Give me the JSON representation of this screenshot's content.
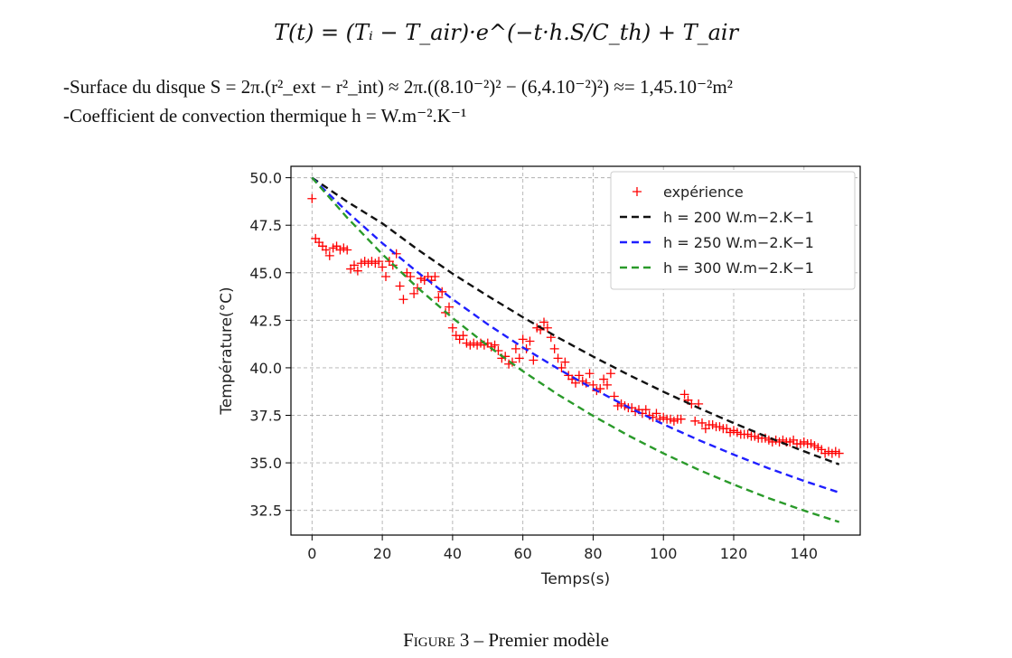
{
  "formula": "T(t) = (Tᵢ − T_air)·e^(−t·h.S/C_th) + T_air",
  "text_lines": [
    "-Surface du disque S = 2π.(r²_ext − r²_int) ≈ 2π.((8.10⁻²)² − (6,4.10⁻²)²) ≈= 1,45.10⁻²m²",
    "-Coefficient de convection thermique h = W.m⁻².K⁻¹"
  ],
  "caption": {
    "prefix": "Figure 3",
    "separator": " – ",
    "title": "Premier modèle"
  },
  "chart_data": {
    "type": "line",
    "title": "",
    "xlabel": "Temps(s)",
    "ylabel": "Température(°C)",
    "xlim": [
      -6,
      156
    ],
    "ylim": [
      31.2,
      50.6
    ],
    "xticks": [
      0,
      20,
      40,
      60,
      80,
      100,
      120,
      140
    ],
    "yticks": [
      32.5,
      35.0,
      37.5,
      40.0,
      42.5,
      45.0,
      47.5,
      50.0
    ],
    "grid": true,
    "legend_position": "top-right",
    "series": [
      {
        "name": "expérience",
        "kind": "scatter",
        "marker": "+",
        "color": "#ff0000",
        "x": [
          0,
          1,
          2,
          3,
          4,
          5,
          6,
          7,
          8,
          9,
          10,
          11,
          12,
          13,
          14,
          15,
          16,
          17,
          18,
          19,
          20,
          21,
          22,
          23,
          24,
          25,
          26,
          27,
          28,
          29,
          30,
          31,
          32,
          33,
          34,
          35,
          36,
          37,
          38,
          39,
          40,
          41,
          42,
          43,
          44,
          45,
          46,
          47,
          48,
          49,
          50,
          51,
          52,
          53,
          54,
          55,
          56,
          57,
          58,
          59,
          60,
          61,
          62,
          63,
          64,
          65,
          66,
          67,
          68,
          69,
          70,
          71,
          72,
          73,
          74,
          75,
          76,
          77,
          78,
          79,
          80,
          81,
          82,
          83,
          84,
          85,
          86,
          87,
          88,
          89,
          90,
          91,
          92,
          93,
          94,
          95,
          96,
          97,
          98,
          99,
          100,
          101,
          102,
          103,
          104,
          105,
          106,
          107,
          108,
          109,
          110,
          111,
          112,
          113,
          114,
          115,
          116,
          117,
          118,
          119,
          120,
          121,
          122,
          123,
          124,
          125,
          126,
          127,
          128,
          129,
          130,
          131,
          132,
          133,
          134,
          135,
          136,
          137,
          138,
          139,
          140,
          141,
          142,
          143,
          144,
          145,
          146,
          147,
          148,
          149,
          150
        ],
        "y": [
          48.9,
          46.8,
          46.6,
          46.4,
          46.2,
          45.9,
          46.3,
          46.4,
          46.2,
          46.3,
          46.2,
          45.2,
          45.4,
          45.1,
          45.5,
          45.6,
          45.5,
          45.6,
          45.5,
          45.6,
          45.3,
          44.8,
          45.6,
          45.4,
          46.0,
          44.3,
          43.6,
          45.0,
          44.8,
          43.9,
          44.2,
          44.7,
          44.6,
          44.8,
          44.6,
          44.8,
          43.7,
          44.0,
          42.9,
          43.2,
          42.1,
          41.7,
          41.5,
          41.7,
          41.3,
          41.2,
          41.3,
          41.2,
          41.3,
          41.2,
          41.3,
          41.1,
          41.2,
          40.9,
          40.5,
          40.6,
          40.2,
          40.3,
          41.0,
          40.5,
          41.5,
          41.0,
          41.4,
          40.4,
          42.1,
          42.0,
          42.4,
          42.1,
          41.6,
          41.0,
          40.5,
          40.0,
          40.3,
          39.6,
          39.4,
          39.2,
          39.6,
          39.3,
          39.2,
          39.7,
          39.1,
          38.8,
          38.9,
          39.4,
          39.1,
          39.7,
          38.5,
          38.0,
          38.1,
          38.0,
          37.9,
          37.9,
          37.7,
          37.8,
          37.6,
          37.8,
          37.5,
          37.4,
          37.6,
          37.3,
          37.4,
          37.3,
          37.3,
          37.2,
          37.3,
          37.3,
          38.6,
          38.3,
          38.1,
          37.2,
          38.1,
          37.1,
          36.8,
          37.0,
          37.0,
          36.9,
          36.9,
          36.8,
          36.8,
          36.6,
          36.7,
          36.6,
          36.5,
          36.5,
          36.5,
          36.4,
          36.4,
          36.3,
          36.3,
          36.3,
          36.2,
          36.1,
          36.2,
          36.1,
          36.2,
          36.1,
          36.1,
          36.2,
          36.0,
          36.0,
          36.1,
          36.0,
          36.0,
          35.9,
          35.8,
          35.7,
          35.5,
          35.6,
          35.5,
          35.6,
          35.5
        ]
      },
      {
        "name": " h = 200 W.m−2.K−1",
        "kind": "line",
        "dash": true,
        "color": "#111111",
        "x": [
          0,
          10,
          20,
          30,
          40,
          50,
          60,
          70,
          80,
          90,
          100,
          110,
          120,
          130,
          140,
          150
        ],
        "y": [
          50.0,
          48.74,
          47.6,
          46.23,
          44.95,
          43.78,
          42.66,
          41.59,
          40.59,
          39.64,
          38.74,
          37.89,
          37.09,
          36.33,
          35.61,
          34.92
        ]
      },
      {
        "name": "h = 250 W.m−2.K−1",
        "kind": "line",
        "dash": true,
        "color": "#1f1fff",
        "x": [
          0,
          10,
          20,
          30,
          40,
          50,
          60,
          70,
          80,
          90,
          100,
          110,
          120,
          130,
          140,
          150
        ],
        "y": [
          50.0,
          48.21,
          46.56,
          45.03,
          43.61,
          42.29,
          41.07,
          39.95,
          38.9,
          37.93,
          37.03,
          36.2,
          35.43,
          34.71,
          34.05,
          33.44
        ]
      },
      {
        "name": "h = 300 W.m−2.K−1",
        "kind": "line",
        "dash": true,
        "color": "#2a9a2a",
        "x": [
          0,
          10,
          20,
          30,
          40,
          50,
          60,
          70,
          80,
          90,
          100,
          110,
          120,
          130,
          140,
          150
        ],
        "y": [
          50.0,
          47.9,
          45.98,
          44.22,
          42.62,
          41.16,
          39.82,
          38.59,
          37.47,
          36.44,
          35.5,
          34.64,
          33.86,
          33.14,
          32.49,
          31.89
        ]
      }
    ]
  }
}
